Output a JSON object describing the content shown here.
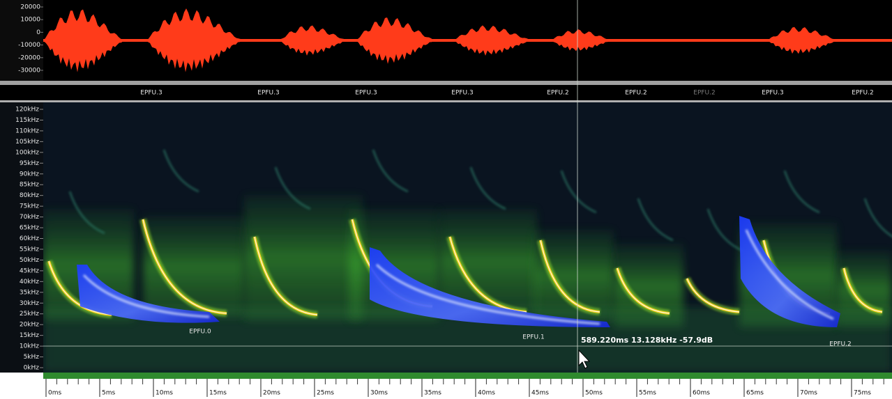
{
  "waveform": {
    "axis_labels": [
      "20000",
      "10000",
      "0",
      "-10000",
      "-20000",
      "-30000"
    ]
  },
  "call_labels": [
    "EPFU.3",
    "EPFU.3",
    "EPFU.3",
    "EPFU.3",
    "EPFU.2",
    "EPFU.2",
    "EPFU.2",
    "EPFU.3",
    "EPFU.2"
  ],
  "spectrogram": {
    "freq_labels": [
      "120kHz",
      "115kHz",
      "110kHz",
      "105kHz",
      "100kHz",
      "95kHz",
      "90kHz",
      "85kHz",
      "80kHz",
      "75kHz",
      "70kHz",
      "65kHz",
      "60kHz",
      "55kHz",
      "50kHz",
      "45kHz",
      "40kHz",
      "35kHz",
      "30kHz",
      "25kHz",
      "20kHz",
      "15kHz",
      "10kHz",
      "5kHz",
      "0kHz"
    ],
    "time_labels": [
      "0ms",
      "5ms",
      "10ms",
      "15ms",
      "20ms",
      "25ms",
      "30ms",
      "35ms",
      "40ms",
      "45ms",
      "50ms",
      "55ms",
      "60ms",
      "65ms",
      "70ms",
      "75ms"
    ],
    "selections": [
      "EPFU.0",
      "EPFU.1",
      "EPFU.2"
    ],
    "cursor_readout": "589.220ms 13.128kHz -57.9dB"
  }
}
